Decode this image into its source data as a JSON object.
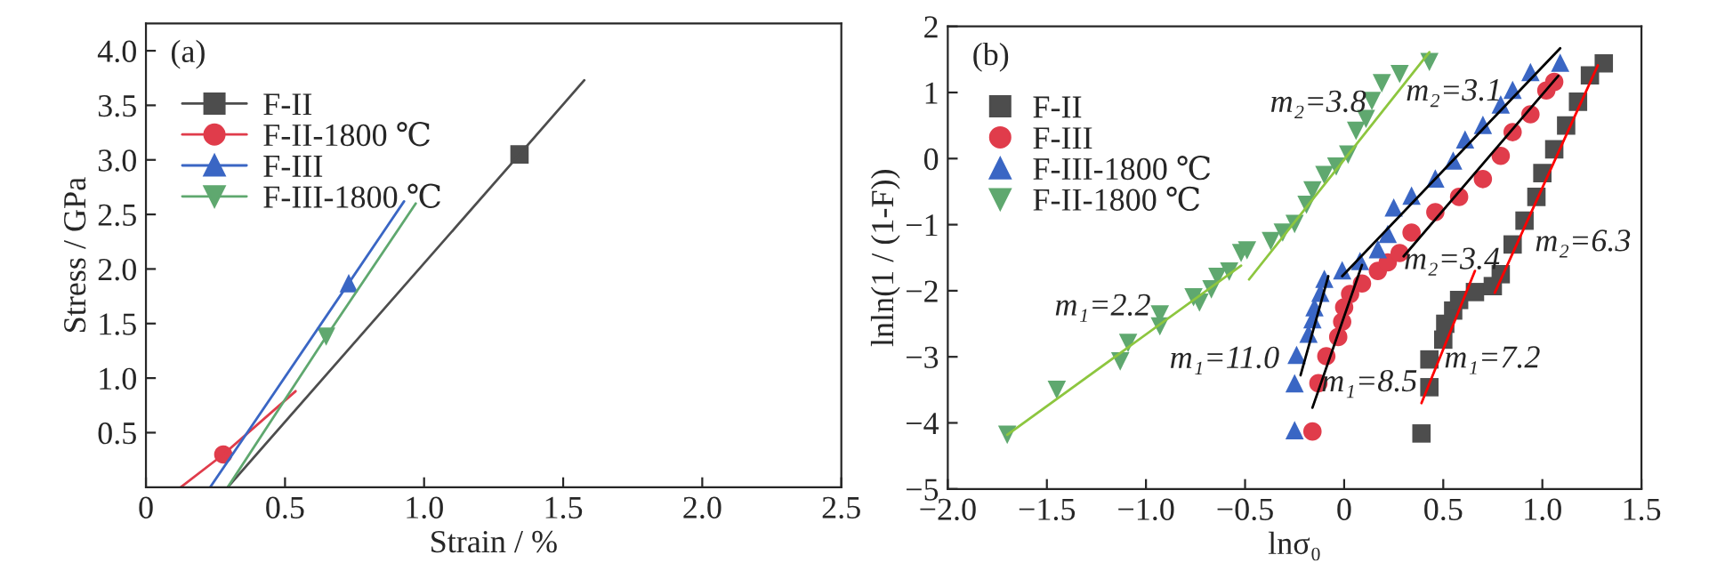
{
  "chart_data": [
    {
      "type": "line",
      "xlabel": "Strain / %",
      "ylabel": "Stress / GPa",
      "annotations": [
        "(a)"
      ],
      "xlim": [
        0,
        2.5
      ],
      "ylim": [
        0,
        4.25
      ],
      "xticks": [
        0,
        0.5,
        {
          "value": 1,
          "label": "1.0"
        },
        1.5,
        {
          "value": 2,
          "label": "2.0"
        },
        2.5
      ],
      "yticks": [
        0.5,
        {
          "value": 1,
          "label": "1.0"
        },
        1.5,
        {
          "value": 2,
          "label": "2.0"
        },
        2.5,
        {
          "value": 3,
          "label": "3.0"
        },
        3.5,
        {
          "value": 4,
          "label": "4.0"
        }
      ],
      "legend": "top left",
      "grid": false,
      "series": [
        {
          "name": "F-II",
          "color": "#4d4d4d",
          "x": [
            0.294,
            1.343,
            1.576
          ],
          "values": [
            0,
            3.05,
            3.73
          ]
        },
        {
          "name": "F-II-1800 ℃",
          "color": "#e03c4b",
          "x": [
            0.125,
            0.278,
            0.538
          ],
          "values": [
            0,
            0.3,
            0.88
          ]
        },
        {
          "name": "F-III",
          "color": "#3a66c4",
          "x": [
            0.231,
            0.729,
            0.928
          ],
          "values": [
            0,
            1.87,
            2.62
          ]
        },
        {
          "name": "F-III-1800 ℃",
          "color": "#5fa86f",
          "x": [
            0.294,
            0.648,
            0.97
          ],
          "values": [
            0,
            1.38,
            2.6
          ]
        },
        {
          "type": "scatter",
          "color": "#4d4d4d",
          "marker": "square",
          "x": [
            1.343
          ],
          "values": [
            3.05
          ]
        },
        {
          "type": "scatter",
          "color": "#e03c4b",
          "marker": "circle",
          "x": [
            0.278
          ],
          "values": [
            0.3
          ]
        },
        {
          "type": "scatter",
          "color": "#3a66c4",
          "marker": "triangle",
          "x": [
            0.729
          ],
          "values": [
            1.87
          ]
        },
        {
          "type": "scatter",
          "color": "#5fa86f",
          "marker": "triangle_down",
          "x": [
            0.648
          ],
          "values": [
            1.38
          ]
        }
      ]
    },
    {
      "type": "scatter",
      "xlabel": "lnσ₀",
      "ylabel": "lnln(1 / (1-F))",
      "xlim": [
        -2,
        1.5
      ],
      "ylim": [
        -5,
        2
      ],
      "xticks": [
        {
          "value": -2,
          "label": "−2.0"
        },
        {
          "value": -1.5,
          "label": "−1.5"
        },
        {
          "value": -1,
          "label": "−1.0"
        },
        {
          "value": -0.5,
          "label": "−0.5"
        },
        0,
        0.5,
        {
          "value": 1,
          "label": "1.0"
        },
        1.5
      ],
      "yticks": [
        {
          "value": -5,
          "label": "−5"
        },
        {
          "value": -4,
          "label": "−4"
        },
        {
          "value": -3,
          "label": "−3"
        },
        {
          "value": -2,
          "label": "−2"
        },
        {
          "value": -1,
          "label": "−1"
        },
        0,
        1,
        2
      ],
      "legend": "top left",
      "grid": false,
      "annotations": [
        "(b)",
        "m₁=2.2",
        "m₂=3.8",
        "m₁=11.0",
        "m₂=3.1",
        "m₁=8.5",
        "m₂=3.4",
        "m₁=7.2",
        "m₂=6.3"
      ],
      "series": [
        {
          "name": "F-II",
          "type": "scatter",
          "color": "#4d4d4d",
          "marker": "square",
          "x": [
            0.39,
            0.43,
            0.43,
            0.5,
            0.51,
            0.55,
            0.58,
            0.66,
            0.75,
            0.79,
            0.85,
            0.91,
            0.97,
            1.0,
            1.06,
            1.12,
            1.18,
            1.24,
            1.31
          ],
          "values": [
            -4.16,
            -3.46,
            -3.04,
            -2.74,
            -2.5,
            -2.3,
            -2.14,
            -2.02,
            -1.93,
            -1.75,
            -1.3,
            -0.94,
            -0.58,
            -0.22,
            0.14,
            0.5,
            0.86,
            1.26,
            1.44
          ]
        },
        {
          "name": "F-III",
          "type": "scatter",
          "color": "#e03c4b",
          "marker": "circle",
          "x": [
            -0.16,
            -0.13,
            -0.09,
            -0.03,
            -0.01,
            0.0,
            0.03,
            0.09,
            0.17,
            0.22,
            0.28,
            0.34,
            0.46,
            0.58,
            0.7,
            0.79,
            0.85,
            0.94,
            1.02,
            1.06
          ],
          "values": [
            -4.13,
            -3.4,
            -2.99,
            -2.7,
            -2.47,
            -2.25,
            -2.05,
            -1.89,
            -1.7,
            -1.57,
            -1.43,
            -1.12,
            -0.81,
            -0.58,
            -0.31,
            0.04,
            0.4,
            0.67,
            1.03,
            1.16
          ]
        },
        {
          "name": "F-III-1800 ℃",
          "type": "scatter",
          "color": "#3a66c4",
          "marker": "triangle",
          "x": [
            -0.25,
            -0.25,
            -0.24,
            -0.18,
            -0.16,
            -0.15,
            -0.12,
            -0.1,
            -0.01,
            0.08,
            0.17,
            0.22,
            0.25,
            0.34,
            0.46,
            0.55,
            0.61,
            0.7,
            0.79,
            0.85,
            0.94,
            1.09
          ],
          "values": [
            -4.11,
            -3.4,
            -2.97,
            -2.65,
            -2.43,
            -2.25,
            -2.03,
            -1.82,
            -1.69,
            -1.55,
            -1.37,
            -1.14,
            -0.74,
            -0.56,
            -0.3,
            -0.03,
            0.29,
            0.51,
            0.82,
            1.04,
            1.31,
            1.45
          ]
        },
        {
          "name": "F-II-1800 ℃",
          "type": "scatter",
          "color": "#5fa86f",
          "marker": "triangle_down",
          "x": [
            -1.7,
            -1.45,
            -1.13,
            -1.09,
            -0.93,
            -0.93,
            -0.76,
            -0.73,
            -0.67,
            -0.64,
            -0.58,
            -0.52,
            -0.49,
            -0.37,
            -0.31,
            -0.25,
            -0.19,
            -0.16,
            -0.1,
            -0.04,
            0.02,
            0.06,
            0.11,
            0.14,
            0.19,
            0.28,
            0.43
          ],
          "values": [
            -4.18,
            -3.5,
            -3.07,
            -2.79,
            -2.54,
            -2.36,
            -2.1,
            -2.18,
            -1.98,
            -1.79,
            -1.71,
            -1.43,
            -1.39,
            -1.25,
            -1.12,
            -0.99,
            -0.7,
            -0.48,
            -0.25,
            -0.12,
            0.06,
            0.42,
            0.6,
            0.87,
            1.14,
            1.28,
            1.46
          ]
        },
        {
          "type": "line",
          "color": "#8dc63f",
          "x": [
            -1.7,
            -0.52
          ],
          "values": [
            -4.18,
            -1.62
          ]
        },
        {
          "type": "line",
          "color": "#8dc63f",
          "x": [
            -0.48,
            0.43
          ],
          "values": [
            -1.83,
            1.61
          ]
        },
        {
          "type": "line",
          "color": "#000000",
          "x": [
            -0.22,
            -0.08
          ],
          "values": [
            -3.28,
            -1.78
          ]
        },
        {
          "type": "line",
          "color": "#000000",
          "x": [
            -0.01,
            1.09
          ],
          "values": [
            -1.78,
            1.67
          ]
        },
        {
          "type": "line",
          "color": "#000000",
          "x": [
            -0.16,
            0.09
          ],
          "values": [
            -3.77,
            -1.61
          ]
        },
        {
          "type": "line",
          "color": "#000000",
          "x": [
            0.3,
            1.08
          ],
          "values": [
            -1.48,
            1.25
          ]
        },
        {
          "type": "line",
          "color": "#ff0000",
          "x": [
            0.39,
            0.66
          ],
          "values": [
            -3.7,
            -1.7
          ]
        },
        {
          "type": "line",
          "color": "#ff0000",
          "x": [
            0.76,
            1.28
          ],
          "values": [
            -2.03,
            1.41
          ]
        }
      ]
    }
  ]
}
